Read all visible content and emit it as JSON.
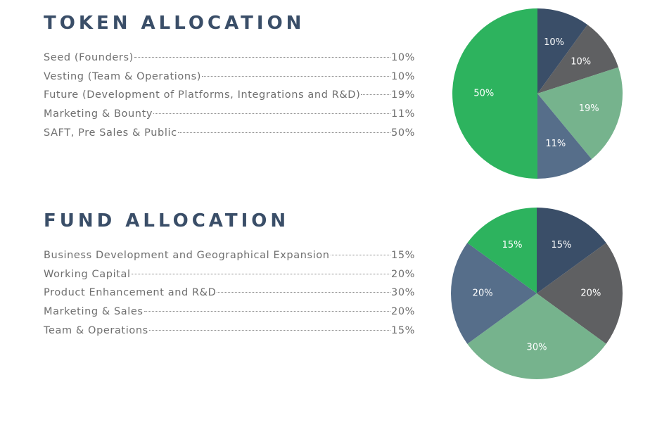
{
  "chart_data": [
    {
      "type": "pie",
      "title": "TOKEN ALLOCATION",
      "categories": [
        "Seed (Founders)",
        "Vesting (Team & Operations)",
        "Future (Development of Platforms, Integrations and R&D)",
        "Marketing & Bounty",
        "SAFT, Pre Sales & Public"
      ],
      "values": [
        10,
        10,
        19,
        11,
        50
      ],
      "value_labels": [
        "10%",
        "10%",
        "19%",
        "11%",
        "50%"
      ],
      "colors": [
        "#3a4e68",
        "#5f6062",
        "#76b38d",
        "#566e8a",
        "#2db35e"
      ],
      "legend": "left list"
    },
    {
      "type": "pie",
      "title": "FUND ALLOCATION",
      "categories": [
        "Business Development and Geographical Expansion",
        "Working Capital",
        "Product Enhancement and R&D",
        "Marketing & Sales",
        "Team & Operations"
      ],
      "values": [
        15,
        20,
        30,
        20,
        15
      ],
      "value_labels": [
        "15%",
        "20%",
        "30%",
        "20%",
        "15%"
      ],
      "colors": [
        "#3a4e68",
        "#5f6062",
        "#76b38d",
        "#566e8a",
        "#2db35e"
      ],
      "legend": "left list"
    }
  ]
}
